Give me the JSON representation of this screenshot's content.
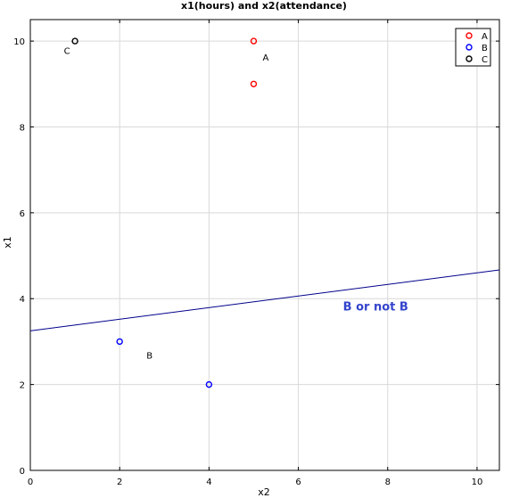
{
  "chart_data": {
    "type": "scatter",
    "title": "x1(hours) and x2(attendance)",
    "xlabel": "x2",
    "ylabel": "x1",
    "xlim": [
      0,
      10.5
    ],
    "ylim": [
      0,
      10.5
    ],
    "x_ticks": [
      0,
      2,
      4,
      6,
      8,
      10
    ],
    "y_ticks": [
      0,
      2,
      4,
      6,
      8,
      10
    ],
    "grid": true,
    "legend_position": "top-right",
    "series": [
      {
        "name": "A",
        "color": "#ff0000",
        "points": [
          [
            5,
            10
          ],
          [
            5,
            9
          ]
        ]
      },
      {
        "name": "B",
        "color": "#0000ff",
        "points": [
          [
            2,
            3
          ],
          [
            4,
            2
          ]
        ]
      },
      {
        "name": "C",
        "color": "#000000",
        "points": [
          [
            1,
            10
          ]
        ]
      }
    ],
    "cluster_labels": [
      {
        "text": "A",
        "x": 5.2,
        "y": 9.55
      },
      {
        "text": "B",
        "x": 2.6,
        "y": 2.6
      },
      {
        "text": "C",
        "x": 0.75,
        "y": 9.7
      }
    ],
    "decision_line": {
      "color": "#00008b",
      "label": "B or not B",
      "label_color": "#3344cc",
      "label_x": 7.0,
      "label_y": 3.72,
      "points": [
        [
          0,
          3.25
        ],
        [
          10.5,
          4.67
        ]
      ]
    }
  }
}
